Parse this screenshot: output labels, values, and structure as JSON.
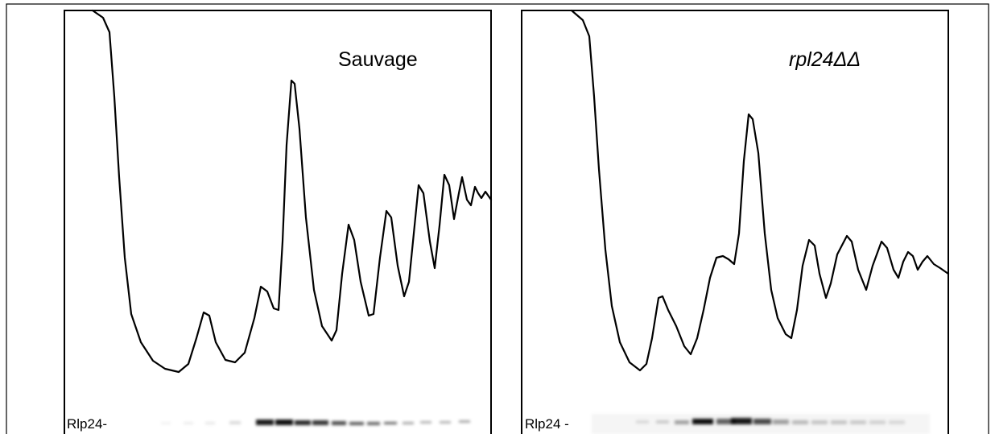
{
  "panels": [
    {
      "title": "Sauvage",
      "blot_label": "Rlp24-"
    },
    {
      "title": "rpl24ΔΔ",
      "blot_label": "Rlp24 -"
    }
  ]
}
